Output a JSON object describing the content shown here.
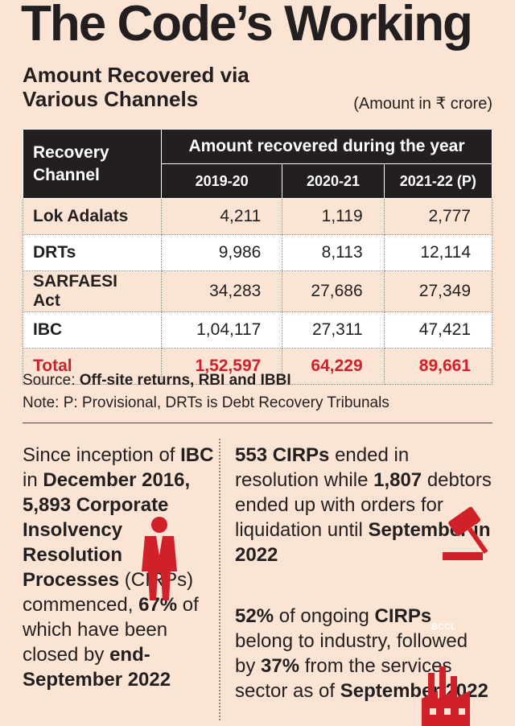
{
  "title": "The Code’s Working",
  "subtitle": "Amount Recovered via Various Channels",
  "unit_note": "(Amount in ₹ crore)",
  "table": {
    "channel_header": "Recovery Channel",
    "group_header": "Amount recovered during the year",
    "years": [
      "2019-20",
      "2020-21",
      "2021-22 (P)"
    ],
    "rows": [
      [
        "Lok Adalats",
        "4,211",
        "1,119",
        "2,777"
      ],
      [
        "DRTs",
        "9,986",
        "8,113",
        "12,114"
      ],
      [
        "SARFAESI Act",
        "34,283",
        "27,686",
        "27,349"
      ],
      [
        "IBC",
        "1,04,117",
        "27,311",
        "47,421"
      ]
    ],
    "total": [
      "Total",
      "1,52,597",
      "64,229",
      "89,661"
    ]
  },
  "source": {
    "label": "Source:",
    "text": "Off-site returns, RBI and IBBI"
  },
  "note": "Note: P: Provisional, DRTs is Debt Recovery Tribunals",
  "left_text": [
    {
      "text": "Since inception of ",
      "bold": false
    },
    {
      "text": "IBC",
      "bold": true
    },
    {
      "text": " in ",
      "bold": false
    },
    {
      "text": "December 2016, 5,893 Corporate Insolvency Resolution Processes",
      "bold": true
    },
    {
      "text": " (CIRPs) commenced, ",
      "bold": false
    },
    {
      "text": "67%",
      "bold": true
    },
    {
      "text": " of which have been closed by ",
      "bold": false
    },
    {
      "text": "end-September 2022",
      "bold": true
    }
  ],
  "right_text_1": [
    {
      "text": "553 CIRPs",
      "bold": true
    },
    {
      "text": " ended in resolution while ",
      "bold": false
    },
    {
      "text": "1,807",
      "bold": true
    },
    {
      "text": " debtors ended up with orders for liquidation until ",
      "bold": false
    },
    {
      "text": "September in 2022",
      "bold": true
    }
  ],
  "right_text_2": [
    {
      "text": "52%",
      "bold": true
    },
    {
      "text": " of ongoing ",
      "bold": false
    },
    {
      "text": "CIRPs",
      "bold": true
    },
    {
      "text": " belong to industry, followed by ",
      "bold": false
    },
    {
      "text": "37%",
      "bold": true
    },
    {
      "text": " from the services sector as of ",
      "bold": false
    },
    {
      "text": "September 2022",
      "bold": true
    }
  ],
  "watermark": "BCCL"
}
